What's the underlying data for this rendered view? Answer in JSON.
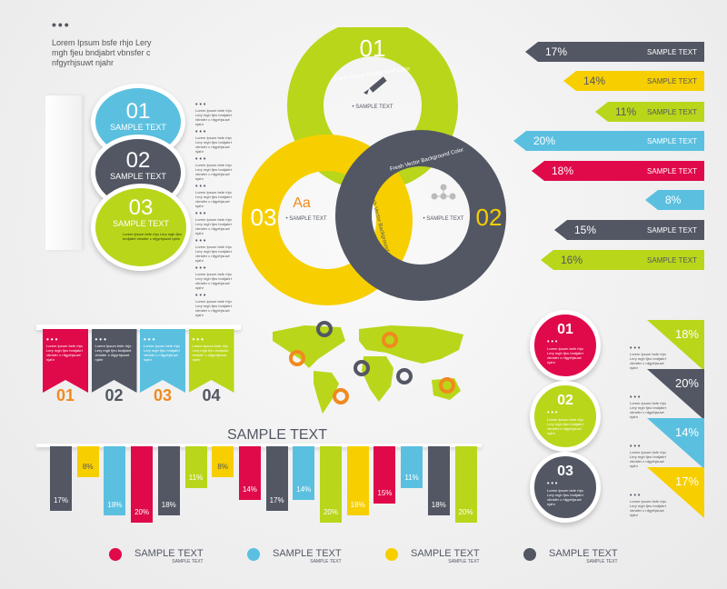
{
  "colors": {
    "red": "#e0094a",
    "gray": "#525763",
    "blue": "#5bc0e0",
    "yellow": "#f7cf00",
    "green": "#b9d61a",
    "orange": "#f08a1e"
  },
  "header": {
    "dots": "•••",
    "text": "Lorem Ipsum bsfe rhjo Lery mgh fjeu bndjabrt vbnsfer c nfgyrhjsuwt njahr"
  },
  "lorem": "Lorem Ipsum bsfe rhjo Lery mgh fjeu bndjabrt vbnsfer c nfgyrhjsuwt njahr",
  "dots": "•••",
  "bubbles": [
    {
      "num": "01",
      "label": "SAMPLE TEXT"
    },
    {
      "num": "02",
      "label": "SAMPLE TEXT"
    },
    {
      "num": "03",
      "label": "SAMPLE TEXT"
    }
  ],
  "rings": [
    {
      "num": "01",
      "arc": "Fresh Vector Background Color",
      "label": "• SAMPLE TEXT",
      "icon": "pencil-icon"
    },
    {
      "num": "02",
      "arc": "Fresh Vector Background Color",
      "label": "• SAMPLE TEXT",
      "icon": "molecule-icon"
    },
    {
      "num": "03",
      "arc": "Fresh Vector Background Color",
      "label": "• SAMPLE TEXT",
      "icon": "font-icon",
      "icon_text": "Aa"
    }
  ],
  "arrows": [
    {
      "pct": "17%",
      "label": "SAMPLE TEXT",
      "color": "gray"
    },
    {
      "pct": "14%",
      "label": "SAMPLE TEXT",
      "color": "yellow"
    },
    {
      "pct": "11%",
      "label": "SAMPLE TEXT",
      "color": "green"
    },
    {
      "pct": "20%",
      "label": "SAMPLE TEXT",
      "color": "blue"
    },
    {
      "pct": "18%",
      "label": "SAMPLE TEXT",
      "color": "red"
    },
    {
      "pct": "8%",
      "label": "",
      "color": "blue"
    },
    {
      "pct": "15%",
      "label": "SAMPLE TEXT",
      "color": "gray"
    },
    {
      "pct": "16%",
      "label": "SAMPLE TEXT",
      "color": "green"
    }
  ],
  "flags": [
    {
      "num": "01",
      "color": "red",
      "numcolor": "orange"
    },
    {
      "num": "02",
      "color": "gray",
      "numcolor": "gray"
    },
    {
      "num": "03",
      "color": "blue",
      "numcolor": "orange"
    },
    {
      "num": "04",
      "color": "green",
      "numcolor": "gray"
    }
  ],
  "right_circles": [
    {
      "num": "01",
      "color": "red"
    },
    {
      "num": "02",
      "color": "green"
    },
    {
      "num": "03",
      "color": "gray"
    }
  ],
  "triangles": [
    {
      "pct": "18%",
      "color": "green"
    },
    {
      "pct": "20%",
      "color": "gray"
    },
    {
      "pct": "14%",
      "color": "blue"
    },
    {
      "pct": "17%",
      "color": "yellow"
    }
  ],
  "legend": [
    {
      "label": "SAMPLE TEXT",
      "sub": "SAMPLE TEXT",
      "color": "red"
    },
    {
      "label": "SAMPLE TEXT",
      "sub": "SAMPLE TEXT",
      "color": "blue"
    },
    {
      "label": "SAMPLE TEXT",
      "sub": "SAMPLE TEXT",
      "color": "yellow"
    },
    {
      "label": "SAMPLE TEXT",
      "sub": "SAMPLE TEXT",
      "color": "gray"
    }
  ],
  "chart_data": {
    "type": "bar",
    "title": "SAMPLE TEXT",
    "orientation": "hanging-down",
    "values": [
      17,
      8,
      18,
      20,
      18,
      11,
      8,
      14,
      17,
      14,
      20,
      18,
      15,
      11,
      18,
      20
    ],
    "labels": [
      "17%",
      "8%",
      "18%",
      "20%",
      "18%",
      "11%",
      "8%",
      "14%",
      "17%",
      "14%",
      "20%",
      "18%",
      "15%",
      "11%",
      "18%",
      "20%"
    ],
    "colors": [
      "gray",
      "yellow",
      "blue",
      "red",
      "gray",
      "green",
      "yellow",
      "red",
      "gray",
      "blue",
      "green",
      "yellow",
      "red",
      "blue",
      "gray",
      "green"
    ]
  }
}
